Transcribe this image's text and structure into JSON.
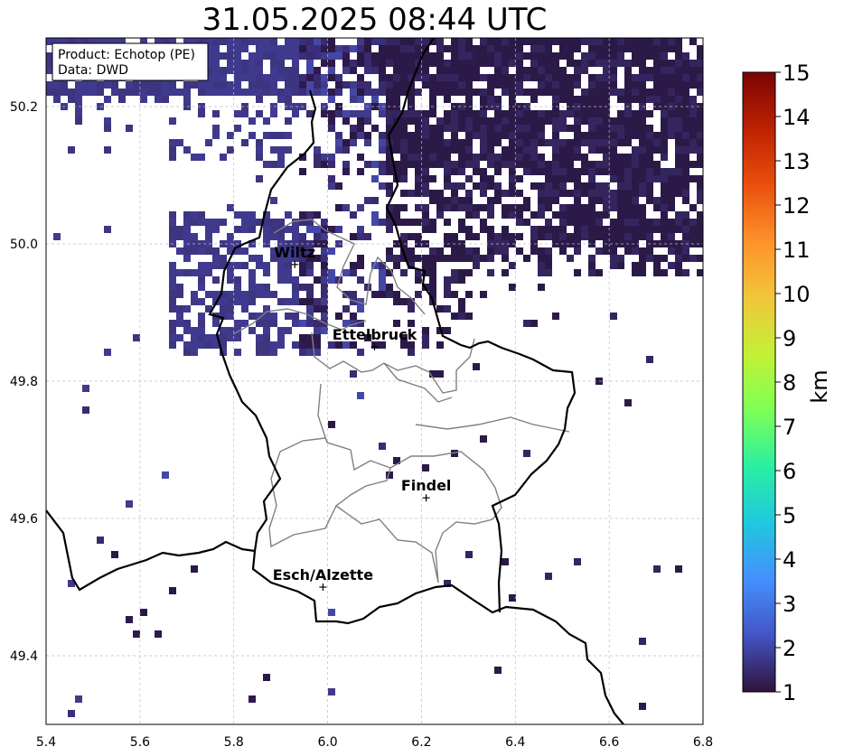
{
  "title": "31.05.2025 08:44 UTC",
  "info_box": {
    "product": "Product: Echotop (PE)",
    "source": "Data: DWD"
  },
  "map": {
    "lon_range": [
      5.4,
      6.8
    ],
    "lat_range": [
      49.3,
      50.3
    ],
    "x_ticks": [
      "5.4",
      "5.6",
      "5.8",
      "6.0",
      "6.2",
      "6.4",
      "6.6",
      "6.8"
    ],
    "y_ticks": [
      "50.2",
      "50.0",
      "49.8",
      "49.6",
      "49.4"
    ],
    "cities": [
      {
        "name": "Wiltz",
        "lon": 5.93,
        "lat": 49.97
      },
      {
        "name": "Ettelbruck",
        "lon": 6.1,
        "lat": 49.85
      },
      {
        "name": "Findel",
        "lon": 6.21,
        "lat": 49.63
      },
      {
        "name": "Esch/Alzette",
        "lon": 5.99,
        "lat": 49.5
      }
    ]
  },
  "colorbar": {
    "label": "km",
    "ticks": [
      "1",
      "2",
      "3",
      "4",
      "5",
      "6",
      "7",
      "8",
      "9",
      "10",
      "11",
      "12",
      "13",
      "14",
      "15"
    ],
    "colormap": [
      "#30123b",
      "#4454c4",
      "#4490fe",
      "#1fc8de",
      "#29efa2",
      "#7eff55",
      "#c3f134",
      "#f2c53a",
      "#fe922a",
      "#ea4f0d",
      "#be2102",
      "#7a0403"
    ]
  }
}
